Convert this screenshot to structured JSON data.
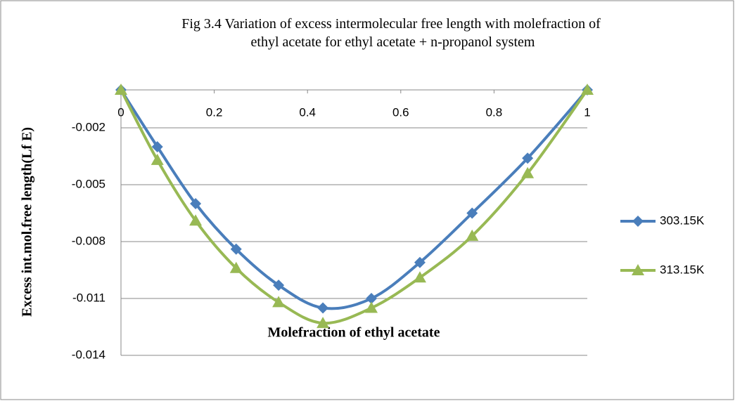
{
  "chart_data": {
    "type": "line",
    "title": "Fig 3.4 Variation of excess intermolecular free length with molefraction of ethyl acetate  for ethyl acetate + n-propanol system",
    "x_label": "Molefraction of ethyl acetate",
    "y_label": "Excess int.mol.free length(Lf E)",
    "x": [
      0,
      0.078,
      0.16,
      0.247,
      0.338,
      0.433,
      0.537,
      0.641,
      0.753,
      0.872,
      1
    ],
    "series": [
      {
        "name": "303.15K",
        "color": "#4a7ebb",
        "marker": "diamond",
        "values": [
          0,
          -0.003,
          -0.006,
          -0.0084,
          -0.0103,
          -0.0115,
          -0.011,
          -0.0091,
          -0.0065,
          -0.0036,
          0
        ]
      },
      {
        "name": "313.15K",
        "color": "#98b954",
        "marker": "triangle",
        "values": [
          0,
          -0.0037,
          -0.0069,
          -0.0094,
          -0.0112,
          -0.0123,
          -0.0115,
          -0.0099,
          -0.0077,
          -0.0044,
          0
        ]
      }
    ],
    "xlim": [
      0,
      1
    ],
    "xticks": [
      0,
      0.2,
      0.4,
      0.6,
      0.8,
      1
    ],
    "ylim": [
      -0.014,
      0
    ],
    "yticks": [
      -0.002,
      -0.005,
      -0.008,
      -0.011,
      -0.014
    ],
    "grid": true,
    "legend": "right"
  }
}
